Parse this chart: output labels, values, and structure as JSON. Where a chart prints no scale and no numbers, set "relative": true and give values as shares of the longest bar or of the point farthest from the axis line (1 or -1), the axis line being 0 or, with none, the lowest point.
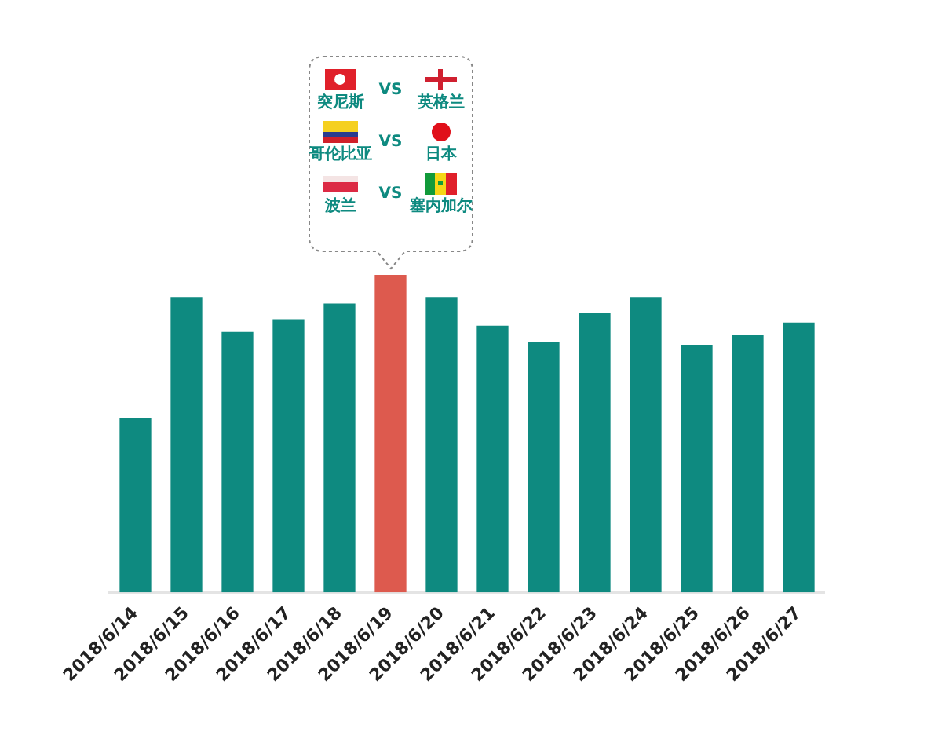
{
  "chart_data": {
    "type": "bar",
    "relative": true,
    "categories": [
      "2018/6/14",
      "2018/6/15",
      "2018/6/16",
      "2018/6/17",
      "2018/6/18",
      "2018/6/19",
      "2018/6/20",
      "2018/6/21",
      "2018/6/22",
      "2018/6/23",
      "2018/6/24",
      "2018/6/25",
      "2018/6/26",
      "2018/6/27"
    ],
    "values": [
      0.55,
      0.93,
      0.82,
      0.86,
      0.91,
      1,
      0.93,
      0.84,
      0.79,
      0.88,
      0.93,
      0.78,
      0.81,
      0.85
    ],
    "colors": [
      "#0e8a80",
      "#0e8a80",
      "#0e8a80",
      "#0e8a80",
      "#0e8a80",
      "#dd5a4e",
      "#0e8a80",
      "#0e8a80",
      "#0e8a80",
      "#0e8a80",
      "#0e8a80",
      "#0e8a80",
      "#0e8a80",
      "#0e8a80"
    ],
    "legend": false,
    "annotations": [
      "突尼斯",
      "VS",
      "英格兰",
      "哥伦比亚",
      "VS",
      "日本",
      "波兰",
      "VS",
      "塞内加尔"
    ]
  }
}
